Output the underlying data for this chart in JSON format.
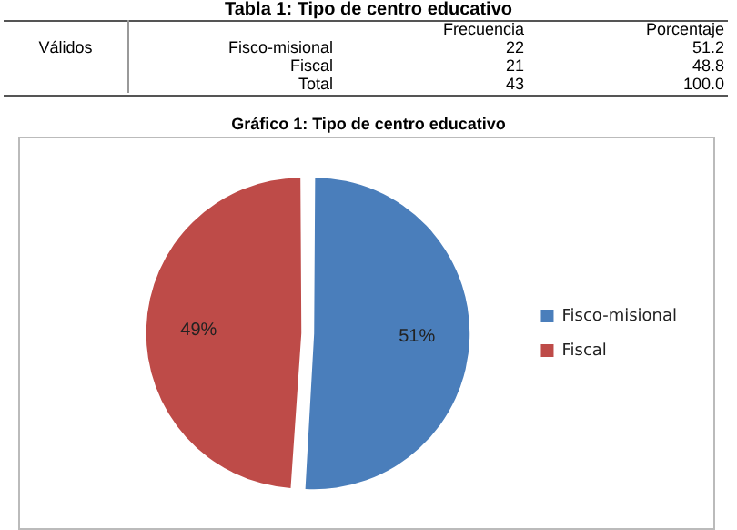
{
  "chart_data": {
    "type": "pie",
    "title": "Gráfico 1: Tipo de centro educativo",
    "categories": [
      "Fisco-misional",
      "Fiscal"
    ],
    "values": [
      51,
      49
    ],
    "value_labels": [
      "51%",
      "49%"
    ],
    "colors": [
      "#4a7ebb",
      "#be4b48"
    ],
    "legend": "right",
    "annotations": [
      "Tabla 1: Tipo de centro educativo",
      "Frecuencia",
      "Porcentaje",
      "Válidos",
      "Fisco-misional",
      "22",
      "51.2",
      "Fiscal",
      "21",
      "48.8",
      "Total",
      "43",
      "100.0"
    ]
  }
}
